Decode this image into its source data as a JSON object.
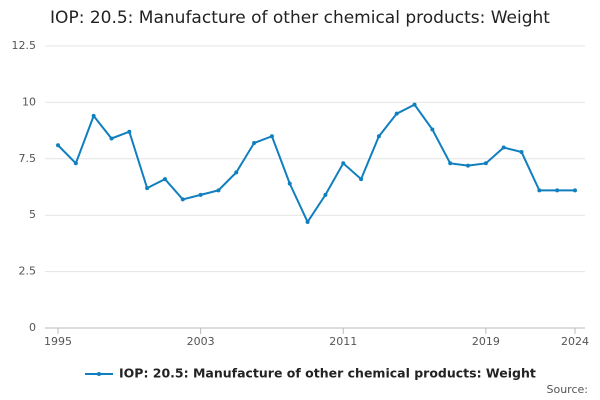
{
  "chart_data": {
    "type": "line",
    "title": "IOP: 20.5: Manufacture of other chemical products: Weight",
    "x": [
      1995,
      1996,
      1997,
      1998,
      1999,
      2000,
      2001,
      2002,
      2003,
      2004,
      2005,
      2006,
      2007,
      2008,
      2009,
      2010,
      2011,
      2012,
      2013,
      2014,
      2015,
      2016,
      2017,
      2018,
      2019,
      2020,
      2021,
      2022,
      2023,
      2024
    ],
    "series": [
      {
        "name": "IOP: 20.5: Manufacture of other chemical products: Weight",
        "color": "#0f7fbf",
        "values": [
          8.1,
          7.3,
          9.4,
          8.4,
          8.7,
          6.2,
          6.6,
          5.7,
          5.9,
          6.1,
          6.9,
          8.2,
          8.5,
          6.4,
          4.7,
          5.9,
          7.3,
          6.6,
          8.5,
          9.5,
          9.9,
          8.8,
          7.3,
          7.2,
          7.3,
          8.0,
          7.8,
          6.1,
          6.1,
          6.1
        ]
      }
    ],
    "xlim": [
      1995,
      2024
    ],
    "xticks": [
      1995,
      2003,
      2011,
      2019,
      2024
    ],
    "ylim": [
      0,
      12.5
    ],
    "yticks": [
      0,
      2.5,
      5,
      7.5,
      10,
      12.5
    ],
    "grid": true,
    "source": "Source:"
  }
}
